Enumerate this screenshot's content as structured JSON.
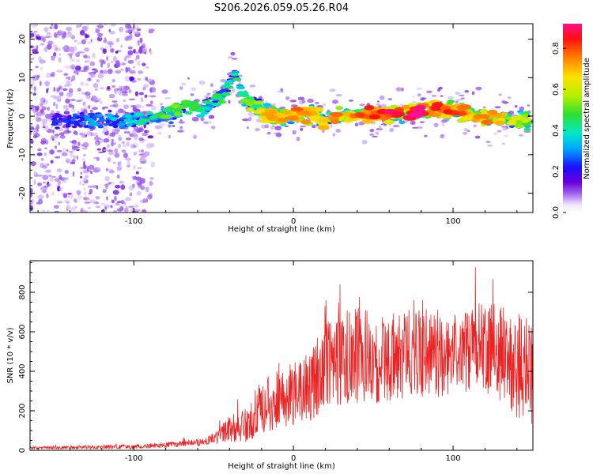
{
  "title": "S206.2026.059.05.26.R04",
  "chart_data": [
    {
      "type": "heatmap",
      "name": "spectrogram",
      "xlabel": "Height of straight line (km)",
      "ylabel": "Frequency (Hz)",
      "xlim": [
        -165,
        150
      ],
      "ylim": [
        -25,
        24
      ],
      "xticks": [
        -100,
        0,
        100
      ],
      "yticks": [
        -20,
        -10,
        0,
        10,
        20
      ],
      "signal_track": {
        "x": [
          -145,
          -120,
          -100,
          -85,
          -75,
          -65,
          -55,
          -45,
          -40,
          -37,
          -33,
          -30,
          -25,
          -20,
          -15,
          -10,
          -5,
          0,
          10,
          20,
          30,
          40,
          50,
          60,
          70,
          80,
          90,
          100,
          110,
          120,
          130,
          140,
          148
        ],
        "freq": [
          -1,
          -1,
          -1,
          -0.5,
          1,
          2.5,
          2,
          5,
          9,
          12,
          6,
          4,
          3,
          1.5,
          0.5,
          0,
          0,
          0,
          0.5,
          -1,
          0,
          0.5,
          0.5,
          0.5,
          0.5,
          1.5,
          1.8,
          1.5,
          0.5,
          -0.5,
          -1,
          -1.5,
          -1
        ],
        "amplitude": [
          0.25,
          0.35,
          0.4,
          0.5,
          0.55,
          0.5,
          0.45,
          0.5,
          0.45,
          0.4,
          0.55,
          0.55,
          0.65,
          0.75,
          0.8,
          0.7,
          0.75,
          0.8,
          0.75,
          0.7,
          0.8,
          0.85,
          0.9,
          0.9,
          0.85,
          0.95,
          0.85,
          0.85,
          0.75,
          0.8,
          0.7,
          0.65,
          0.6
        ]
      },
      "noise_region_xlim": [
        -165,
        -88
      ]
    },
    {
      "type": "line",
      "name": "snr",
      "xlabel": "Height of straight line (km)",
      "ylabel": "SNR (10 * v/v)",
      "xlim": [
        -165,
        150
      ],
      "ylim": [
        0,
        960
      ],
      "xticks": [
        -100,
        0,
        100
      ],
      "yticks": [
        0,
        200,
        400,
        600,
        800
      ],
      "color": "#ee2222",
      "envelope": {
        "x": [
          -165,
          -100,
          -80,
          -60,
          -50,
          -40,
          -30,
          -25,
          -20,
          -10,
          0,
          10,
          20,
          30,
          40,
          50,
          60,
          70,
          80,
          90,
          100,
          110,
          120,
          130,
          140,
          150
        ],
        "mean": [
          12,
          18,
          25,
          40,
          60,
          110,
          130,
          170,
          220,
          260,
          280,
          320,
          420,
          460,
          480,
          470,
          470,
          490,
          500,
          490,
          480,
          500,
          520,
          480,
          430,
          400
        ],
        "spread": [
          10,
          15,
          18,
          25,
          40,
          90,
          120,
          160,
          180,
          200,
          220,
          260,
          300,
          320,
          330,
          310,
          300,
          310,
          310,
          300,
          280,
          300,
          320,
          330,
          360,
          380
        ]
      }
    },
    {
      "type": "colorbar",
      "name": "amplitude-scale",
      "label": "Normalized spectral amplitude",
      "range": [
        0.0,
        0.92
      ],
      "ticks": [
        "0.0",
        "0.2",
        "0.4",
        "0.6",
        "0.8"
      ],
      "tick_values": [
        0,
        0.2,
        0.4,
        0.6,
        0.8
      ]
    }
  ]
}
